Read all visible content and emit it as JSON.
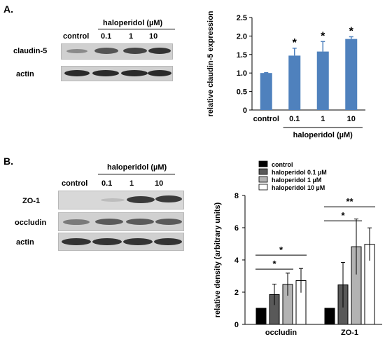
{
  "panel_a": {
    "label": "A.",
    "blot": {
      "treatment_label": "haloperidol (µM)",
      "lanes": [
        "control",
        "0.1",
        "1",
        "10"
      ],
      "rows": [
        "claudin-5",
        "actin"
      ]
    }
  },
  "panel_b": {
    "label": "B.",
    "blot": {
      "treatment_label": "haloperidol (µM)",
      "lanes": [
        "control",
        "0.1",
        "1",
        "10"
      ],
      "rows": [
        "ZO-1",
        "occludin",
        "actin"
      ]
    }
  },
  "chart_data": [
    {
      "type": "bar",
      "title": "",
      "ylabel": "relative claudin-5 expression",
      "xlabel": "haloperidol (µM)",
      "categories": [
        "control",
        "0.1",
        "1",
        "10"
      ],
      "values": [
        1.0,
        1.47,
        1.58,
        1.92
      ],
      "errors": [
        0.01,
        0.2,
        0.27,
        0.06
      ],
      "significance": [
        "",
        "*",
        "*",
        "*"
      ],
      "ylim": [
        0,
        2.5
      ],
      "yticks": [
        "0",
        "0.5",
        "1.0",
        "1.5",
        "2.0",
        "2.5"
      ],
      "bar_color": "#4f81bd",
      "grid": false
    },
    {
      "type": "bar",
      "title": "",
      "ylabel": "relative density  (arbitrary units)",
      "categories": [
        "occludin",
        "ZO-1"
      ],
      "series": [
        {
          "name": "control",
          "values": [
            1.0,
            1.0
          ],
          "errors": [
            0,
            0
          ],
          "color": "#000000"
        },
        {
          "name": "haloperidol 0.1 µM",
          "values": [
            1.85,
            2.45
          ],
          "errors": [
            0.65,
            1.4
          ],
          "color": "#595959"
        },
        {
          "name": "haloperidol 1 µM",
          "values": [
            2.48,
            4.82
          ],
          "errors": [
            0.7,
            1.72
          ],
          "color": "#b3b3b3"
        },
        {
          "name": "haloperidol 10 µM",
          "values": [
            2.72,
            4.97
          ],
          "errors": [
            0.75,
            1.02
          ],
          "color": "#ffffff"
        }
      ],
      "significance": [
        {
          "category": "occludin",
          "from": "control",
          "to": "haloperidol 1 µM",
          "mark": "*"
        },
        {
          "category": "occludin",
          "from": "control",
          "to": "haloperidol 10 µM",
          "mark": "*"
        },
        {
          "category": "ZO-1",
          "from": "control",
          "to": "haloperidol 1 µM",
          "mark": "*"
        },
        {
          "category": "ZO-1",
          "from": "control",
          "to": "haloperidol 10 µM",
          "mark": "**"
        }
      ],
      "ylim": [
        0,
        8
      ],
      "yticks": [
        "0",
        "2",
        "4",
        "6",
        "8"
      ],
      "legend": "top-left",
      "grid": false
    }
  ]
}
